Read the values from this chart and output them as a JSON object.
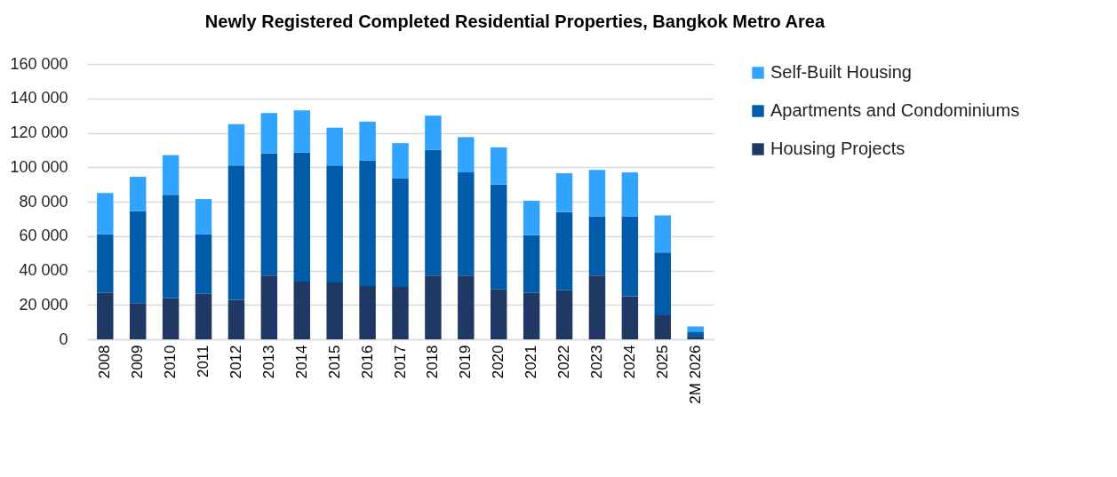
{
  "chart_data": {
    "type": "bar",
    "title": "Newly Registered Completed Residential Properties, Bangkok Metro Area",
    "stacked": true,
    "categories": [
      "2008",
      "2009",
      "2010",
      "2011",
      "2012",
      "2013",
      "2014",
      "2015",
      "2016",
      "2017",
      "2018",
      "2019",
      "2020",
      "2021",
      "2022",
      "2023",
      "2024",
      "2025",
      "2M 2026"
    ],
    "series": [
      {
        "name": "Housing Projects",
        "color": "#203864",
        "values": [
          27000,
          21000,
          24000,
          26500,
          23000,
          37000,
          33500,
          33000,
          31000,
          30500,
          37000,
          37000,
          29000,
          27000,
          28500,
          37000,
          25000,
          14000,
          1500
        ]
      },
      {
        "name": "Apartments and Condominiums",
        "color": "#005ca8",
        "values": [
          34000,
          53500,
          60000,
          34500,
          78000,
          71000,
          75000,
          68000,
          73000,
          63000,
          73000,
          60000,
          61000,
          33500,
          45500,
          34500,
          46500,
          36500,
          3000
        ]
      },
      {
        "name": "Self-Built Housing",
        "color": "#30a4ff",
        "values": [
          24000,
          20000,
          23000,
          20500,
          24000,
          23500,
          24500,
          22000,
          22500,
          20500,
          20000,
          20500,
          21500,
          20000,
          22500,
          27000,
          25500,
          21500,
          3000
        ]
      }
    ],
    "ylim": [
      0,
      160000
    ],
    "yticks": [
      {
        "value": 0,
        "label": "0"
      },
      {
        "value": 20000,
        "label": "20 000"
      },
      {
        "value": 40000,
        "label": "40 000"
      },
      {
        "value": 60000,
        "label": "60 000"
      },
      {
        "value": 80000,
        "label": "80 000"
      },
      {
        "value": 100000,
        "label": "100 000"
      },
      {
        "value": 120000,
        "label": "120 000"
      },
      {
        "value": 140000,
        "label": "140 000"
      },
      {
        "value": 160000,
        "label": "160 000"
      }
    ],
    "grid": "y",
    "legend": "right"
  }
}
